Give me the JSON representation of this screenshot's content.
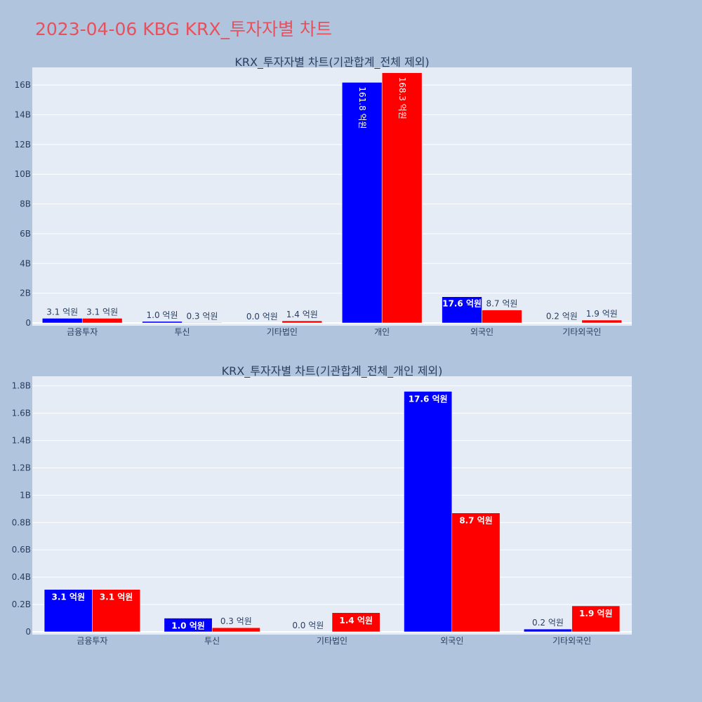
{
  "title": "2023-04-06 KBG KRX_투자자별 차트",
  "colors": {
    "series1": "#0000ff",
    "series2": "#ff0000",
    "background": "#b0c4de",
    "plot_bg": "#e5ecf6",
    "text": "#2a3f5f",
    "title": "#e8505b"
  },
  "chart_data": [
    {
      "type": "bar",
      "title": "KRX_투자자별 차트(기관합계_전체 제외)",
      "categories": [
        "금융투자",
        "투신",
        "기타법인",
        "개인",
        "외국인",
        "기타외국인"
      ],
      "series": [
        {
          "name": "series1",
          "values": [
            310000000,
            100000000,
            0,
            16180000000,
            1760000000,
            20000000
          ],
          "labels": [
            "3.1 억원",
            "1.0 억원",
            "0.0 억원",
            "161.8 억원",
            "17.6 억원",
            "0.2 억원"
          ]
        },
        {
          "name": "series2",
          "values": [
            310000000,
            30000000,
            140000000,
            16830000000,
            870000000,
            190000000
          ],
          "labels": [
            "3.1 억원",
            "0.3 억원",
            "1.4 억원",
            "168.3 억원",
            "8.7 억원",
            "1.9 억원"
          ]
        }
      ],
      "ylim": [
        0,
        17000000000
      ],
      "yticks": [
        0,
        2000000000,
        4000000000,
        6000000000,
        8000000000,
        10000000000,
        12000000000,
        14000000000,
        16000000000
      ],
      "ytick_labels": [
        "0",
        "2B",
        "4B",
        "6B",
        "8B",
        "10B",
        "12B",
        "14B",
        "16B"
      ],
      "xlabel": "",
      "ylabel": ""
    },
    {
      "type": "bar",
      "title": "KRX_투자자별 차트(기관합계_전체_개인 제외)",
      "categories": [
        "금융투자",
        "투신",
        "기타법인",
        "외국인",
        "기타외국인"
      ],
      "series": [
        {
          "name": "series1",
          "values": [
            310000000,
            100000000,
            0,
            1760000000,
            20000000
          ],
          "labels": [
            "3.1 억원",
            "1.0 억원",
            "0.0 억원",
            "17.6 억원",
            "0.2 억원"
          ]
        },
        {
          "name": "series2",
          "values": [
            310000000,
            30000000,
            140000000,
            870000000,
            190000000
          ],
          "labels": [
            "3.1 억원",
            "0.3 억원",
            "1.4 억원",
            "8.7 억원",
            "1.9 억원"
          ]
        }
      ],
      "ylim": [
        0,
        1850000000
      ],
      "yticks": [
        0,
        200000000,
        400000000,
        600000000,
        800000000,
        1000000000,
        1200000000,
        1400000000,
        1600000000,
        1800000000
      ],
      "ytick_labels": [
        "0",
        "0.2B",
        "0.4B",
        "0.6B",
        "0.8B",
        "1B",
        "1.2B",
        "1.4B",
        "1.6B",
        "1.8B"
      ],
      "xlabel": "",
      "ylabel": ""
    }
  ]
}
